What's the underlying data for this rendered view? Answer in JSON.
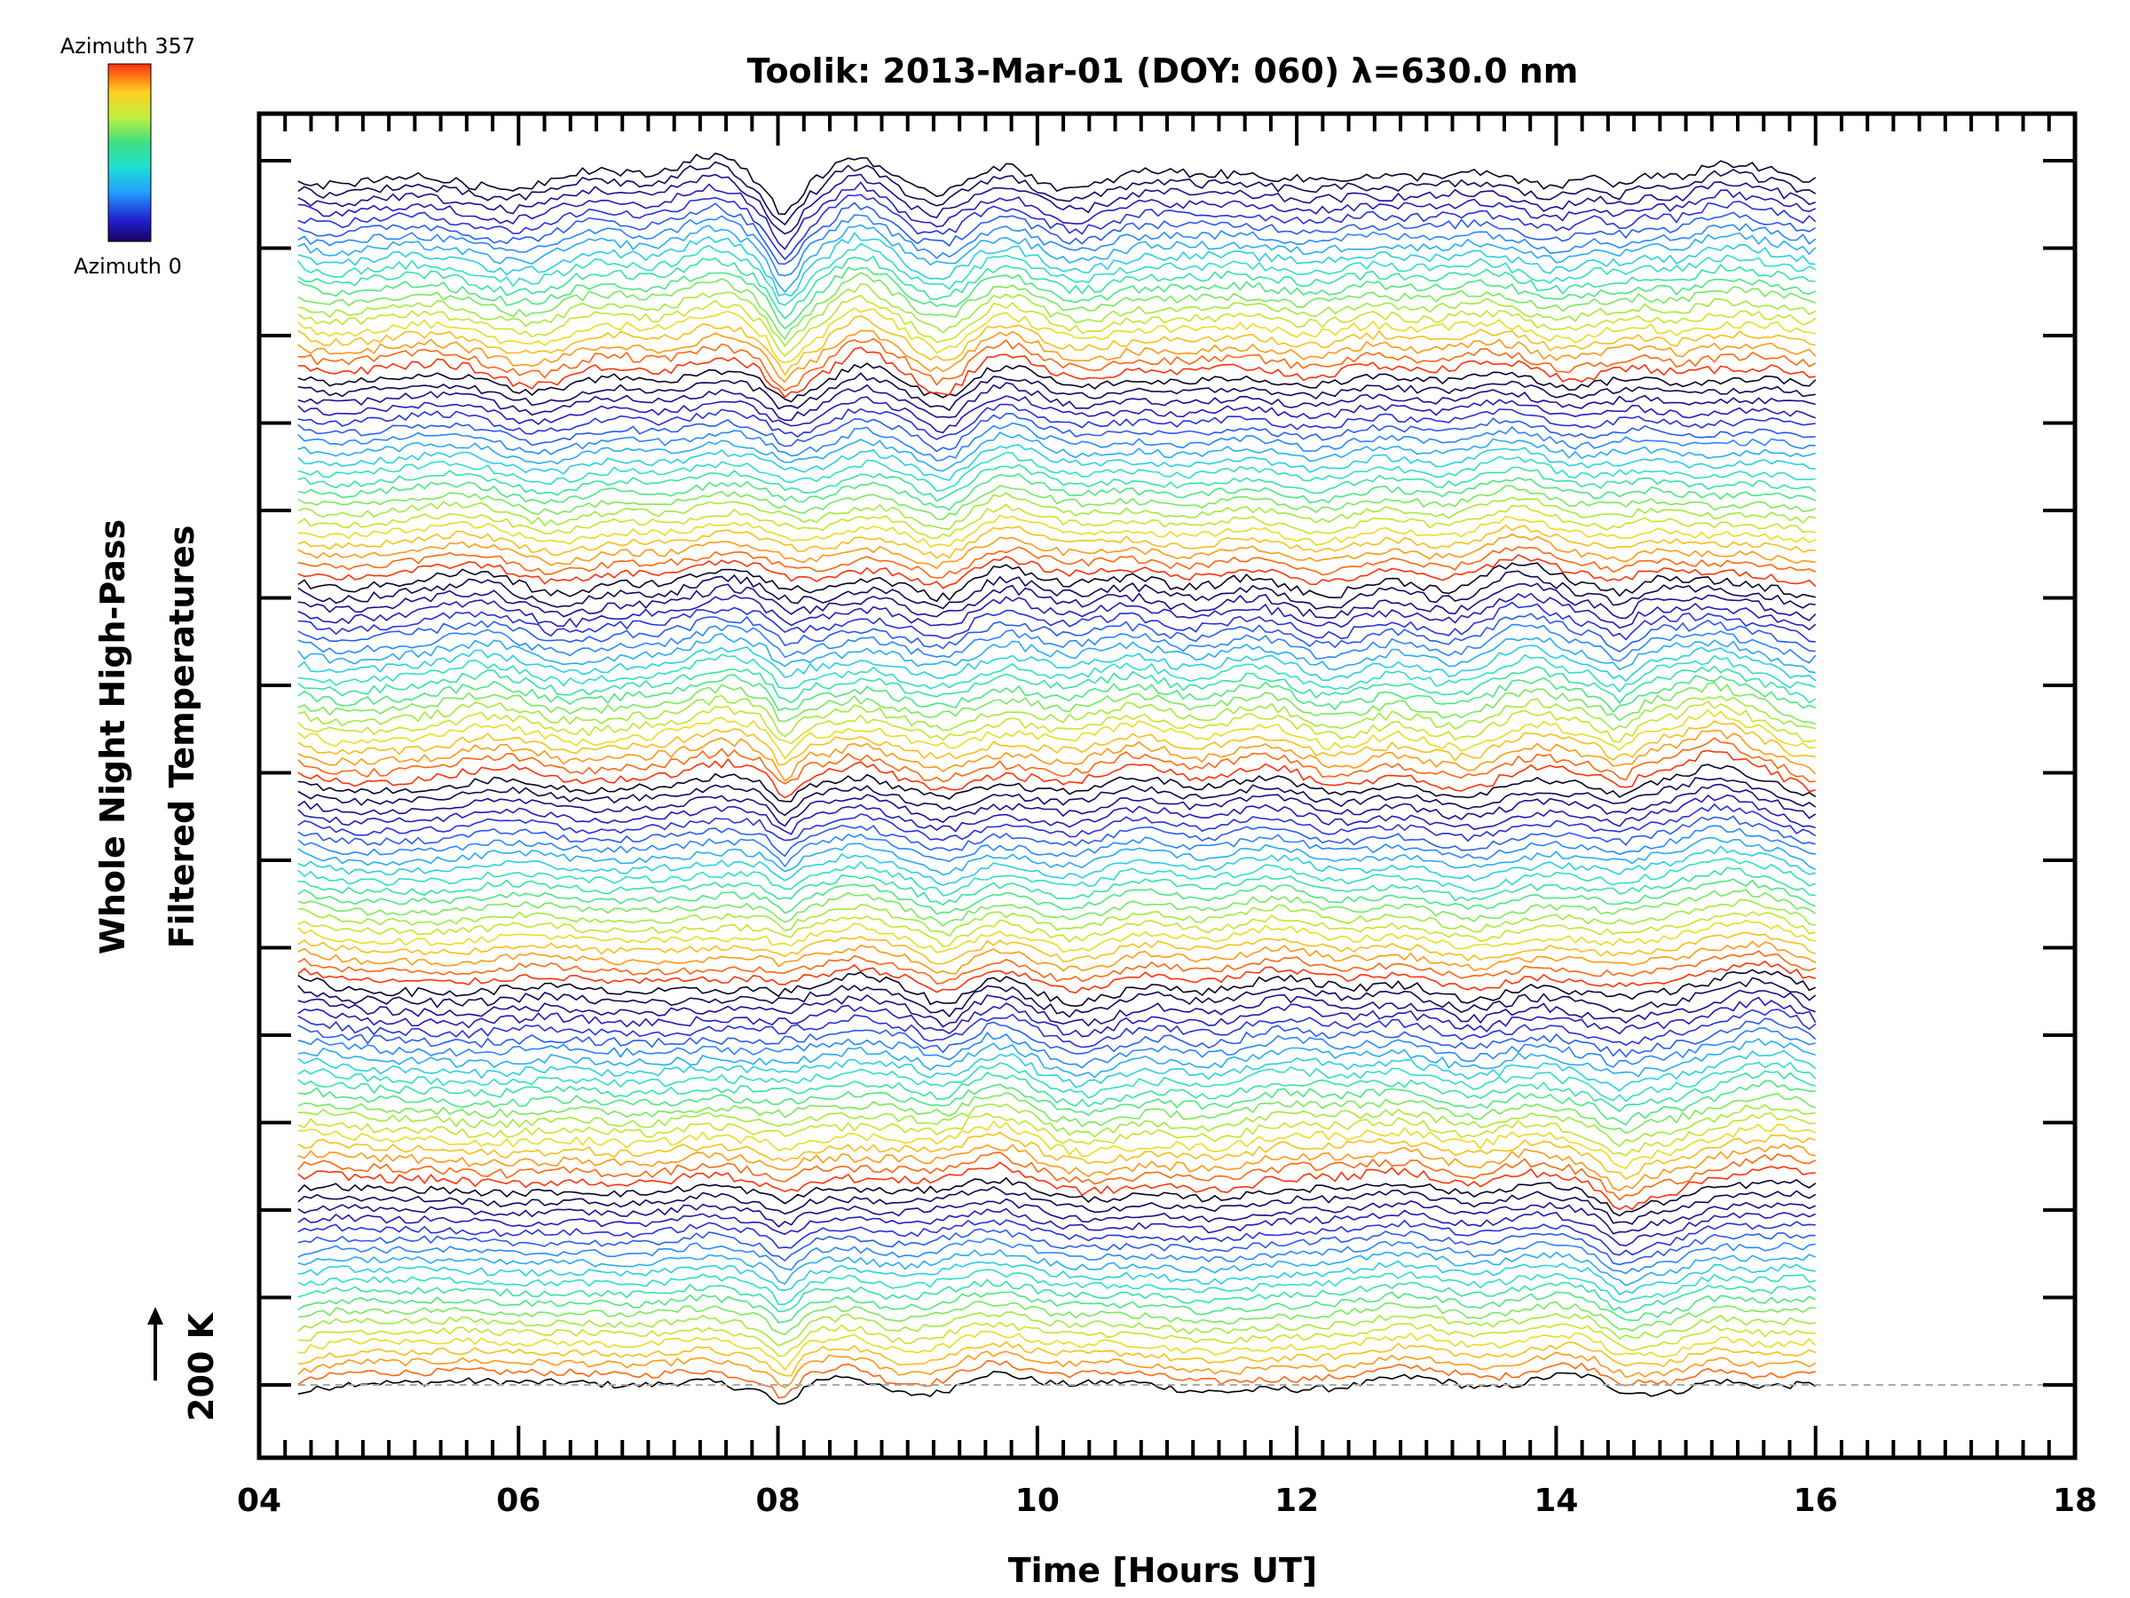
{
  "chart_data": {
    "type": "line",
    "title": "Toolik: 2013-Mar-01 (DOY: 060) λ=630.0 nm",
    "xlabel": "Time [Hours UT]",
    "ylabel_line1": "Whole Night High-Pass",
    "ylabel_line2": "Filtered Temperatures",
    "xlim": [
      4,
      18
    ],
    "x_ticks": [
      "04",
      "06",
      "08",
      "10",
      "12",
      "14",
      "16",
      "18"
    ],
    "x_tick_values": [
      4,
      6,
      8,
      10,
      12,
      14,
      16,
      18
    ],
    "data_x_range": [
      4.3,
      16.0
    ],
    "scale_bar_label": "200 K",
    "colorbar": {
      "top_label": "Azimuth 357",
      "bottom_label": "Azimuth 0",
      "colormap": "rainbow"
    },
    "baseline_style": "dashed",
    "group_count": 6,
    "traces_per_group": 20,
    "features": [
      {
        "x": 7.5,
        "amplitude": 0.6,
        "width": 0.35
      },
      {
        "x": 8.05,
        "amplitude": -1.2,
        "width": 0.12
      },
      {
        "x": 8.6,
        "amplitude": 0.4,
        "width": 0.2
      },
      {
        "x": 9.3,
        "amplitude": -0.7,
        "width": 0.2
      },
      {
        "x": 9.7,
        "amplitude": 0.5,
        "width": 0.3
      },
      {
        "x": 13.7,
        "amplitude": 0.4,
        "width": 0.3
      },
      {
        "x": 14.5,
        "amplitude": -0.8,
        "width": 0.15
      },
      {
        "x": 15.2,
        "amplitude": 0.7,
        "width": 0.25
      }
    ],
    "grid": false,
    "legend": "none"
  }
}
